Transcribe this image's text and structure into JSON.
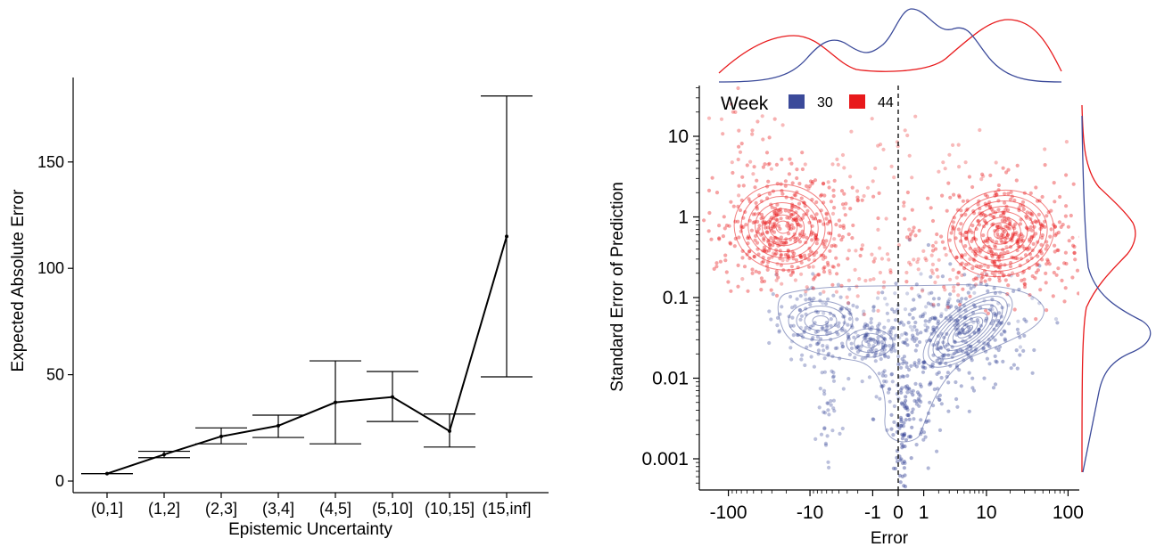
{
  "chart_data": [
    {
      "type": "line",
      "xlabel": "Epistemic Uncertainty",
      "ylabel": "Expected Absolute Error",
      "categories": [
        "(0,1]",
        "(1,2]",
        "(2,3]",
        "(3,4]",
        "(4,5]",
        "(5,10]",
        "(10,15]",
        "(15,inf]"
      ],
      "values": [
        3.5,
        12.5,
        21,
        26,
        37,
        39.5,
        23.5,
        115
      ],
      "error_low": [
        3.5,
        11,
        17.5,
        20.5,
        17.5,
        28,
        16,
        49
      ],
      "error_high": [
        3.5,
        14,
        25,
        31,
        56.5,
        51.5,
        31.5,
        181
      ],
      "yticks": [
        0,
        50,
        100,
        150
      ],
      "ylim": [
        -3,
        190
      ],
      "grid": false,
      "colors": {
        "line": "#000000"
      }
    },
    {
      "type": "scatter",
      "xlabel": "Error",
      "ylabel": "Standard Error of Prediction",
      "xscale": "symlog",
      "yscale": "log",
      "xticks": [
        "-100",
        "-10",
        "-1",
        "0",
        "1",
        "10",
        "100"
      ],
      "yticks": [
        "0.001",
        "0.01",
        "0.1",
        "1",
        "10"
      ],
      "xlim": [
        -140,
        140
      ],
      "ylim": [
        0.0004,
        40
      ],
      "reference_line": {
        "x": 0,
        "style": "dashed"
      },
      "legend": {
        "title": "Week",
        "placement": "top-left",
        "entries": [
          {
            "label": "30",
            "color": "#3b4a9a"
          },
          {
            "label": "44",
            "color": "#e8191b"
          }
        ]
      },
      "clusters": [
        {
          "series": "44",
          "x_center": -8,
          "y_center": 0.7,
          "note": "dense red cluster, upper left"
        },
        {
          "series": "44",
          "x_center": 8,
          "y_center": 0.6,
          "note": "dense red cluster, upper right"
        },
        {
          "series": "30",
          "x_center": -1.5,
          "y_center": 0.04,
          "note": "blue cluster, lower left"
        },
        {
          "series": "30",
          "x_center": 2.5,
          "y_center": 0.03,
          "note": "dense blue cluster, lower right"
        }
      ],
      "marginal_x": "density curves per week on top",
      "marginal_y": "density curves per week on right",
      "grid": false
    }
  ]
}
